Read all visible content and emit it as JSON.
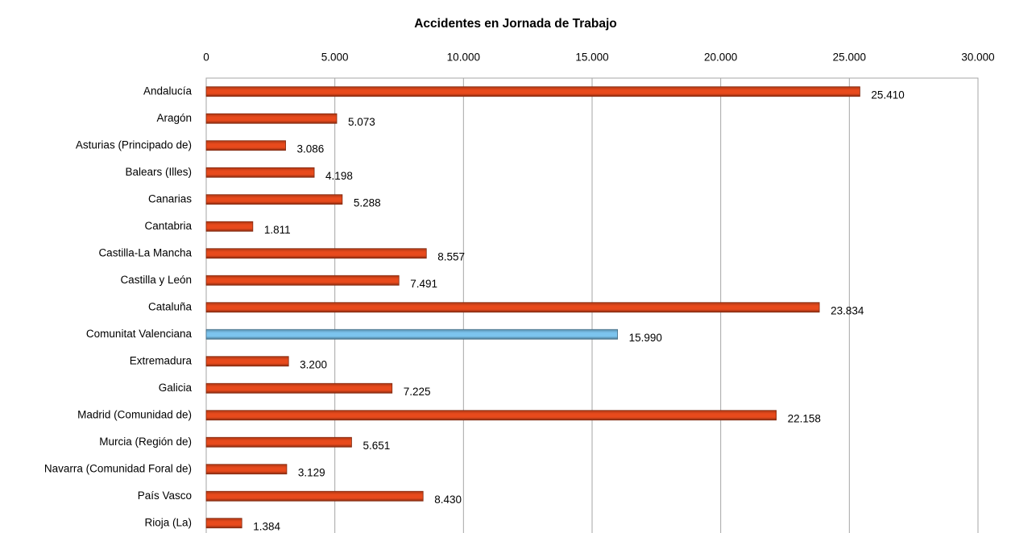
{
  "chart_data": {
    "type": "hbar",
    "title": "Accidentes en Jornada de Trabajo",
    "categories": [
      "Andalucía",
      "Aragón",
      "Asturias (Principado de)",
      "Balears (Illes)",
      "Canarias",
      "Cantabria",
      "Castilla-La Mancha",
      "Castilla y León",
      "Cataluña",
      "Comunitat Valenciana",
      "Extremadura",
      "Galicia",
      "Madrid (Comunidad de)",
      "Murcia (Región de)",
      "Navarra (Comunidad Foral de)",
      "País Vasco",
      "Rioja (La)"
    ],
    "values": [
      25410,
      5073,
      3086,
      4198,
      5288,
      1811,
      8557,
      7491,
      23834,
      15990,
      3200,
      7225,
      22158,
      5651,
      3129,
      8430,
      1384
    ],
    "value_labels": [
      "25.410",
      "5.073",
      "3.086",
      "4.198",
      "5.288",
      "1.811",
      "8.557",
      "7.491",
      "23.834",
      "15.990",
      "3.200",
      "7.225",
      "22.158",
      "5.651",
      "3.129",
      "8.430",
      "1.384"
    ],
    "colors": [
      "#e84a1c",
      "#e84a1c",
      "#e84a1c",
      "#e84a1c",
      "#e84a1c",
      "#e84a1c",
      "#e84a1c",
      "#e84a1c",
      "#e84a1c",
      "#7cc4ee",
      "#e84a1c",
      "#e84a1c",
      "#e84a1c",
      "#e84a1c",
      "#e84a1c",
      "#e84a1c",
      "#e84a1c"
    ],
    "xlim": [
      0,
      30000
    ],
    "xticks": [
      0,
      {
        "value": 5000,
        "label": "5.000"
      },
      {
        "value": 10000,
        "label": "10.000"
      },
      {
        "value": 15000,
        "label": "15.000"
      },
      {
        "value": 20000,
        "label": "20.000"
      },
      {
        "value": 25000,
        "label": "25.000"
      },
      {
        "value": 30000,
        "label": "30.000"
      }
    ],
    "grid": true
  }
}
